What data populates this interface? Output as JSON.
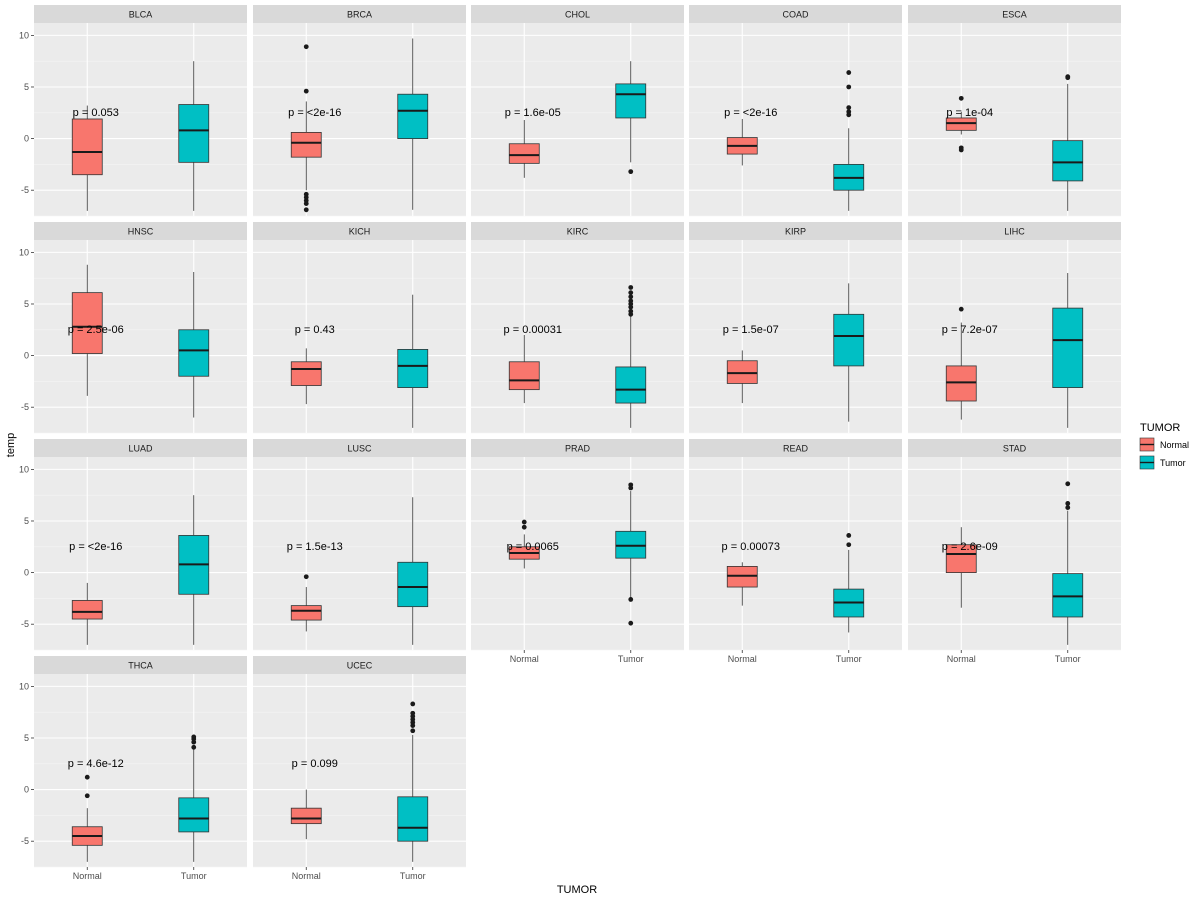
{
  "chart_data": {
    "type": "boxplot",
    "facet_layout": "wrap",
    "xlabel": "TUMOR",
    "ylabel": "temp",
    "categories": [
      "Normal",
      "Tumor"
    ],
    "ylim": [
      -7.5,
      11.2
    ],
    "y_ticks": [
      -5,
      0,
      5,
      10
    ],
    "legend": {
      "title": "TUMOR",
      "position": "right",
      "entries": [
        {
          "label": "Normal",
          "color": "#F8766D"
        },
        {
          "label": "Tumor",
          "color": "#00BFC4"
        }
      ]
    },
    "panels": [
      {
        "name": "BLCA",
        "p_label": "p = 0.053",
        "boxes": {
          "Normal": {
            "lw": -7.0,
            "q1": -3.5,
            "med": -1.3,
            "q3": 1.9,
            "uw": 3.2,
            "out": []
          },
          "Tumor": {
            "lw": -7.0,
            "q1": -2.3,
            "med": 0.8,
            "q3": 3.3,
            "uw": 7.5,
            "out": []
          }
        }
      },
      {
        "name": "BRCA",
        "p_label": "p = <2e-16",
        "boxes": {
          "Normal": {
            "lw": -5.0,
            "q1": -1.8,
            "med": -0.4,
            "q3": 0.6,
            "uw": 3.6,
            "out": [
              8.9,
              4.6,
              -5.4,
              -5.7,
              -6.0,
              -6.3,
              -6.9
            ]
          },
          "Tumor": {
            "lw": -6.9,
            "q1": 0.0,
            "med": 2.7,
            "q3": 4.3,
            "uw": 9.7,
            "out": []
          }
        }
      },
      {
        "name": "CHOL",
        "p_label": "p = 1.6e-05",
        "boxes": {
          "Normal": {
            "lw": -3.8,
            "q1": -2.4,
            "med": -1.6,
            "q3": -0.5,
            "uw": 1.8,
            "out": []
          },
          "Tumor": {
            "lw": -2.3,
            "q1": 2.0,
            "med": 4.3,
            "q3": 5.3,
            "uw": 7.5,
            "out": [
              -3.2
            ]
          }
        }
      },
      {
        "name": "COAD",
        "p_label": "p = <2e-16",
        "boxes": {
          "Normal": {
            "lw": -2.6,
            "q1": -1.5,
            "med": -0.7,
            "q3": 0.1,
            "uw": 1.9,
            "out": []
          },
          "Tumor": {
            "lw": -7.0,
            "q1": -5.0,
            "med": -3.8,
            "q3": -2.5,
            "uw": 1.0,
            "out": [
              6.4,
              5.0,
              3.0,
              2.6,
              2.3
            ]
          }
        }
      },
      {
        "name": "ESCA",
        "p_label": "p = 1e-04",
        "boxes": {
          "Normal": {
            "lw": 0.4,
            "q1": 0.8,
            "med": 1.5,
            "q3": 2.0,
            "uw": 2.6,
            "out": [
              3.9,
              -0.9,
              -1.1
            ]
          },
          "Tumor": {
            "lw": -7.0,
            "q1": -4.1,
            "med": -2.3,
            "q3": -0.2,
            "uw": 5.3,
            "out": [
              6.0,
              5.9
            ]
          }
        }
      },
      {
        "name": "HNSC",
        "p_label": "p = 2.5e-06",
        "boxes": {
          "Normal": {
            "lw": -3.9,
            "q1": 0.2,
            "med": 2.8,
            "q3": 6.1,
            "uw": 8.8,
            "out": []
          },
          "Tumor": {
            "lw": -6.0,
            "q1": -2.0,
            "med": 0.5,
            "q3": 2.5,
            "uw": 8.1,
            "out": []
          }
        }
      },
      {
        "name": "KICH",
        "p_label": "p = 0.43",
        "boxes": {
          "Normal": {
            "lw": -4.7,
            "q1": -2.9,
            "med": -1.3,
            "q3": -0.6,
            "uw": 0.7,
            "out": []
          },
          "Tumor": {
            "lw": -7.0,
            "q1": -3.1,
            "med": -1.0,
            "q3": 0.6,
            "uw": 5.9,
            "out": []
          }
        }
      },
      {
        "name": "KIRC",
        "p_label": "p = 0.00031",
        "boxes": {
          "Normal": {
            "lw": -4.6,
            "q1": -3.3,
            "med": -2.4,
            "q3": -0.6,
            "uw": 2.0,
            "out": []
          },
          "Tumor": {
            "lw": -7.0,
            "q1": -4.6,
            "med": -3.3,
            "q3": -1.1,
            "uw": 3.8,
            "out": [
              6.6,
              6.1,
              5.7,
              5.3,
              5.0,
              4.7,
              4.3,
              4.0
            ]
          }
        }
      },
      {
        "name": "KIRP",
        "p_label": "p = 1.5e-07",
        "boxes": {
          "Normal": {
            "lw": -4.6,
            "q1": -2.7,
            "med": -1.7,
            "q3": -0.5,
            "uw": 0.5,
            "out": []
          },
          "Tumor": {
            "lw": -6.4,
            "q1": -1.0,
            "med": 1.9,
            "q3": 4.0,
            "uw": 7.0,
            "out": []
          }
        }
      },
      {
        "name": "LIHC",
        "p_label": "p = 7.2e-07",
        "boxes": {
          "Normal": {
            "lw": -6.2,
            "q1": -4.4,
            "med": -2.6,
            "q3": -1.0,
            "uw": 3.2,
            "out": [
              4.5
            ]
          },
          "Tumor": {
            "lw": -7.0,
            "q1": -3.1,
            "med": 1.5,
            "q3": 4.6,
            "uw": 8.0,
            "out": []
          }
        }
      },
      {
        "name": "LUAD",
        "p_label": "p = <2e-16",
        "boxes": {
          "Normal": {
            "lw": -7.0,
            "q1": -4.5,
            "med": -3.8,
            "q3": -2.7,
            "uw": -1.0,
            "out": []
          },
          "Tumor": {
            "lw": -7.0,
            "q1": -2.1,
            "med": 0.8,
            "q3": 3.6,
            "uw": 7.5,
            "out": []
          }
        }
      },
      {
        "name": "LUSC",
        "p_label": "p = 1.5e-13",
        "boxes": {
          "Normal": {
            "lw": -5.7,
            "q1": -4.6,
            "med": -3.7,
            "q3": -3.2,
            "uw": -1.4,
            "out": [
              -0.4
            ]
          },
          "Tumor": {
            "lw": -7.0,
            "q1": -3.3,
            "med": -1.4,
            "q3": 1.0,
            "uw": 7.3,
            "out": []
          }
        }
      },
      {
        "name": "PRAD",
        "p_label": "p = 0.0065",
        "boxes": {
          "Normal": {
            "lw": 0.4,
            "q1": 1.3,
            "med": 1.9,
            "q3": 2.5,
            "uw": 3.7,
            "out": [
              4.9,
              4.4
            ]
          },
          "Tumor": {
            "lw": -2.5,
            "q1": 1.4,
            "med": 2.6,
            "q3": 4.0,
            "uw": 7.9,
            "out": [
              8.5,
              8.2,
              -2.6,
              -4.9
            ]
          }
        }
      },
      {
        "name": "READ",
        "p_label": "p = 0.00073",
        "boxes": {
          "Normal": {
            "lw": -3.2,
            "q1": -1.4,
            "med": -0.3,
            "q3": 0.6,
            "uw": 1.0,
            "out": []
          },
          "Tumor": {
            "lw": -5.8,
            "q1": -4.3,
            "med": -2.9,
            "q3": -1.6,
            "uw": 2.2,
            "out": [
              3.6,
              2.7
            ]
          }
        }
      },
      {
        "name": "STAD",
        "p_label": "p = 2.6e-09",
        "boxes": {
          "Normal": {
            "lw": -3.4,
            "q1": 0.0,
            "med": 1.8,
            "q3": 2.7,
            "uw": 4.4,
            "out": []
          },
          "Tumor": {
            "lw": -7.0,
            "q1": -4.3,
            "med": -2.3,
            "q3": -0.1,
            "uw": 6.0,
            "out": [
              8.6,
              6.7,
              6.3
            ]
          }
        }
      },
      {
        "name": "THCA",
        "p_label": "p = 4.6e-12",
        "boxes": {
          "Normal": {
            "lw": -7.0,
            "q1": -5.4,
            "med": -4.5,
            "q3": -3.6,
            "uw": -1.8,
            "out": [
              1.2,
              -0.6
            ]
          },
          "Tumor": {
            "lw": -7.0,
            "q1": -4.1,
            "med": -2.8,
            "q3": -0.8,
            "uw": 3.9,
            "out": [
              5.1,
              4.9,
              4.6,
              4.1
            ]
          }
        }
      },
      {
        "name": "UCEC",
        "p_label": "p = 0.099",
        "boxes": {
          "Normal": {
            "lw": -4.8,
            "q1": -3.3,
            "med": -2.8,
            "q3": -1.8,
            "uw": 0.0,
            "out": []
          },
          "Tumor": {
            "lw": -7.0,
            "q1": -5.0,
            "med": -3.7,
            "q3": -0.7,
            "uw": 5.3,
            "out": [
              8.3,
              7.4,
              7.1,
              6.8,
              6.5,
              6.2,
              5.7
            ]
          }
        }
      }
    ]
  }
}
